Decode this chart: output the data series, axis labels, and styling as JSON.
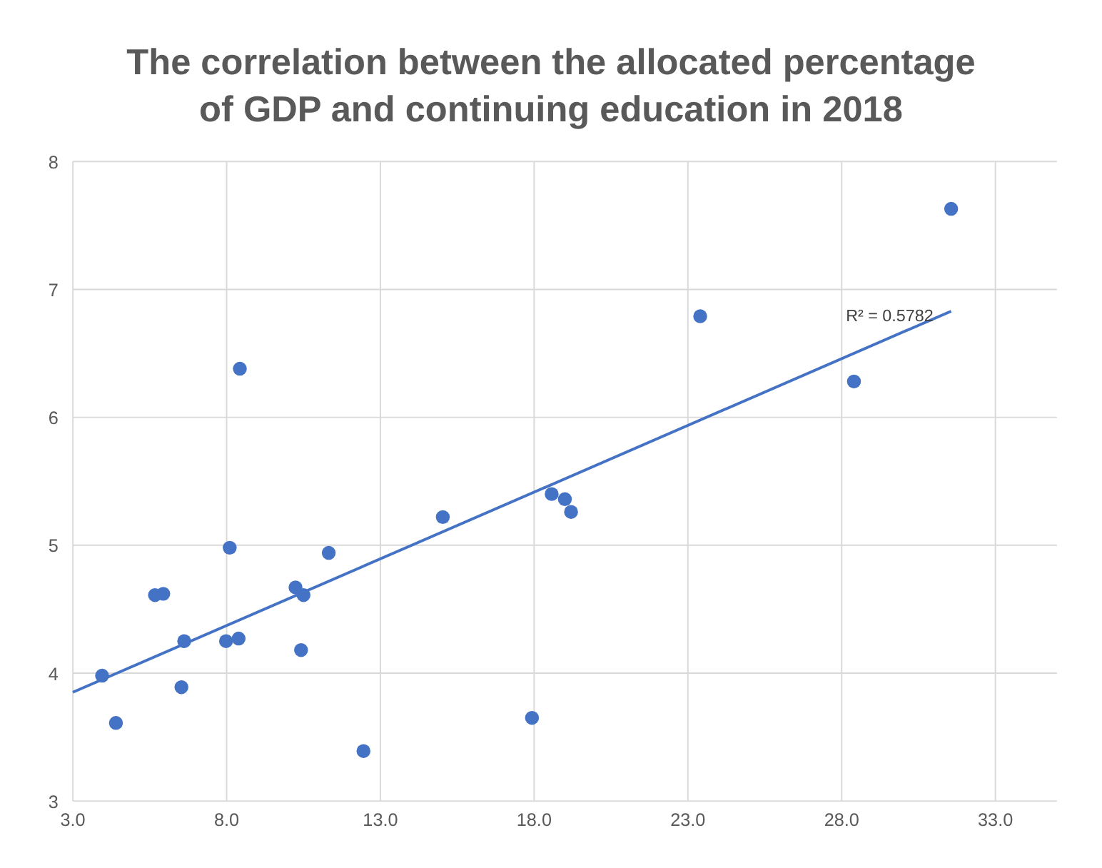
{
  "chart_data": {
    "type": "scatter",
    "title": "The correlation between the allocated percentage\nof GDP and continuing education in 2018",
    "xlim": [
      3,
      35
    ],
    "ylim": [
      3,
      8
    ],
    "xticks": [
      {
        "value": 3,
        "label": "3.0"
      },
      {
        "value": 8,
        "label": "8.0"
      },
      {
        "value": 13,
        "label": "13.0"
      },
      {
        "value": 18,
        "label": "18.0"
      },
      {
        "value": 23,
        "label": "23.0"
      },
      {
        "value": 28,
        "label": "28.0"
      },
      {
        "value": 33,
        "label": "33.0"
      }
    ],
    "yticks": [
      3,
      4,
      5,
      6,
      7,
      8
    ],
    "grid": true,
    "marker": "circle",
    "series": [
      {
        "color": "#4472c4",
        "x": [
          3.95,
          4.4,
          5.67,
          5.94,
          6.62,
          6.53,
          7.98,
          8.39,
          8.1,
          8.43,
          10.24,
          10.5,
          10.42,
          11.32,
          12.45,
          15.03,
          17.93,
          18.57,
          19.0,
          19.2,
          23.4,
          28.4,
          31.56
        ],
        "values": [
          3.98,
          3.61,
          4.61,
          4.62,
          4.25,
          3.89,
          4.25,
          4.27,
          4.98,
          6.38,
          4.67,
          4.61,
          4.18,
          4.94,
          3.39,
          5.22,
          3.65,
          5.4,
          5.36,
          5.26,
          6.79,
          6.28,
          7.63
        ]
      },
      {
        "type": "line",
        "marker": "none",
        "color": "#4472c4",
        "x": [
          3,
          31.56
        ],
        "values": [
          3.85,
          6.83
        ]
      }
    ],
    "annotations": [
      "R² = 0.5782"
    ]
  }
}
